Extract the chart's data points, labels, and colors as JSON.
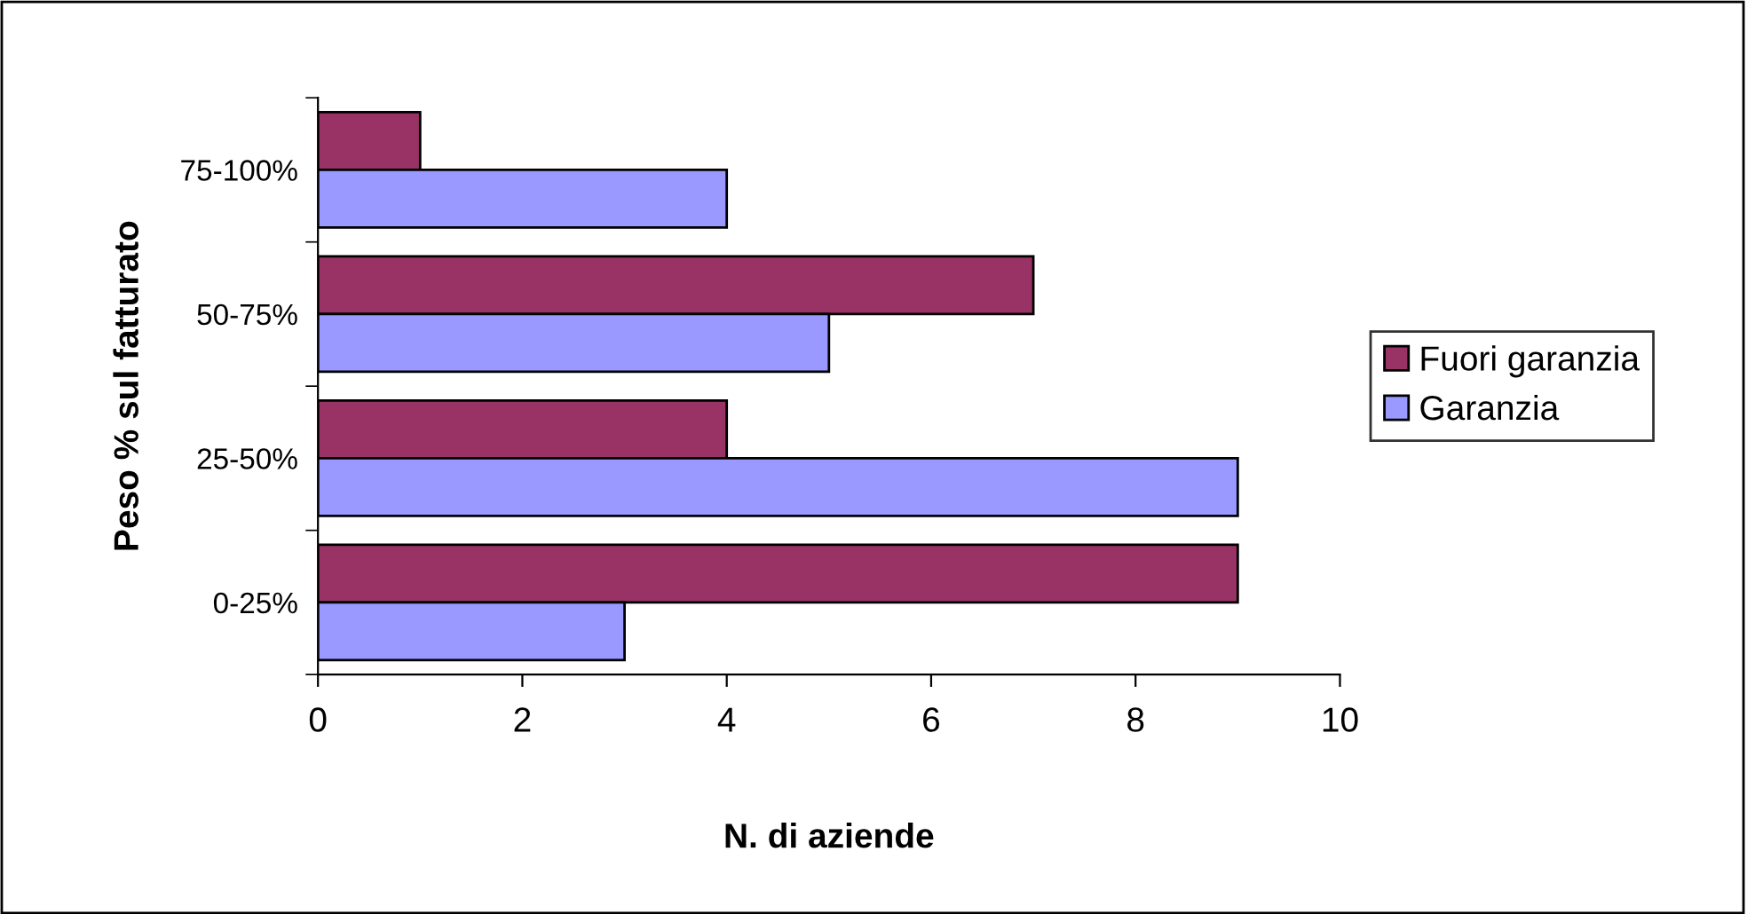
{
  "chart_data": {
    "type": "bar",
    "orientation": "horizontal",
    "xlabel": "N. di aziende",
    "ylabel": "Peso % sul fatturato",
    "categories": [
      "75-100%",
      "50-75%",
      "25-50%",
      "0-25%"
    ],
    "series": [
      {
        "name": "Fuori garanzia",
        "color": "#993366",
        "values": [
          1,
          7,
          4,
          9
        ]
      },
      {
        "name": "Garanzia",
        "color": "#9999ff",
        "values": [
          4,
          5,
          9,
          3
        ]
      }
    ],
    "xlim": [
      0,
      10
    ],
    "xticks": [
      0,
      2,
      4,
      6,
      8,
      10
    ],
    "grid": false,
    "legend": "right"
  }
}
